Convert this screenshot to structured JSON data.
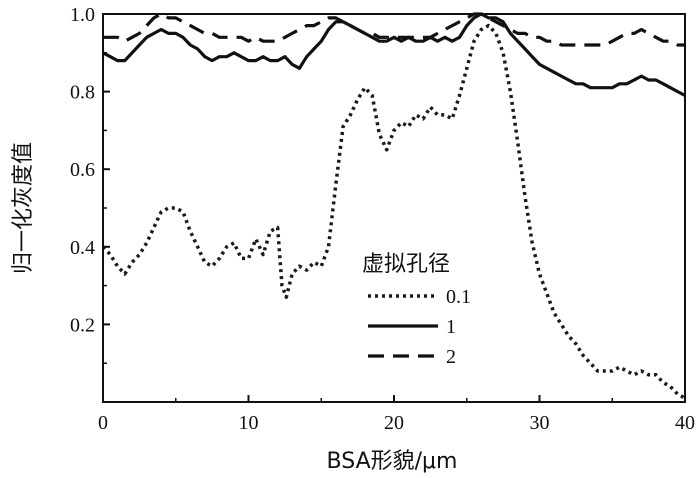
{
  "chart_data": {
    "type": "line",
    "xlabel": "BSA形貌/μm",
    "ylabel": "归一化灰度值",
    "xlim": [
      0,
      40
    ],
    "ylim": [
      0,
      1.0
    ],
    "xticks": [
      "0",
      "10",
      "20",
      "30",
      "40"
    ],
    "yticks": [
      "0.2",
      "0.4",
      "0.6",
      "0.8",
      "1.0"
    ],
    "grid": false,
    "legend": {
      "title": "虚拟孔径",
      "placement": "center-right"
    },
    "series": [
      {
        "name": "0.1",
        "style": "dotted",
        "color": "#1a1a1a",
        "x": [
          0,
          0.5,
          1,
          1.5,
          2,
          2.5,
          3,
          3.5,
          4,
          4.5,
          5,
          5.5,
          6,
          6.5,
          7,
          7.5,
          8,
          8.5,
          9,
          9.5,
          10,
          10.5,
          11,
          11.5,
          12,
          12.3,
          12.6,
          13,
          13.5,
          14,
          14.5,
          15,
          15.5,
          16,
          16.5,
          17,
          17.5,
          18,
          18.5,
          19,
          19.5,
          20,
          20.5,
          21,
          21.5,
          22,
          22.5,
          23,
          23.5,
          24,
          24.5,
          25,
          25.5,
          26,
          26.5,
          27,
          27.5,
          28,
          28.5,
          29,
          29.5,
          30,
          30.5,
          31,
          31.5,
          32,
          32.5,
          33,
          33.5,
          34,
          34.5,
          35,
          35.5,
          36,
          36.5,
          37,
          37.5,
          38,
          38.5,
          39,
          39.5,
          40
        ],
        "values": [
          0.4,
          0.38,
          0.35,
          0.33,
          0.36,
          0.38,
          0.41,
          0.45,
          0.49,
          0.5,
          0.5,
          0.49,
          0.44,
          0.4,
          0.36,
          0.35,
          0.37,
          0.4,
          0.41,
          0.37,
          0.37,
          0.42,
          0.38,
          0.44,
          0.45,
          0.3,
          0.27,
          0.33,
          0.35,
          0.34,
          0.36,
          0.35,
          0.4,
          0.56,
          0.71,
          0.74,
          0.78,
          0.81,
          0.79,
          0.69,
          0.65,
          0.7,
          0.72,
          0.71,
          0.74,
          0.73,
          0.76,
          0.74,
          0.74,
          0.73,
          0.79,
          0.86,
          0.93,
          0.96,
          0.97,
          0.95,
          0.9,
          0.8,
          0.67,
          0.53,
          0.41,
          0.33,
          0.28,
          0.23,
          0.2,
          0.17,
          0.15,
          0.12,
          0.1,
          0.08,
          0.08,
          0.08,
          0.09,
          0.08,
          0.07,
          0.08,
          0.07,
          0.07,
          0.05,
          0.04,
          0.02,
          0.01
        ]
      },
      {
        "name": "1",
        "style": "solid",
        "color": "#111111",
        "x": [
          0,
          0.5,
          1,
          1.5,
          2,
          2.5,
          3,
          3.5,
          4,
          4.5,
          5,
          5.5,
          6,
          6.5,
          7,
          7.5,
          8,
          8.5,
          9,
          9.5,
          10,
          10.5,
          11,
          11.5,
          12,
          12.5,
          13,
          13.5,
          14,
          14.5,
          15,
          15.5,
          16,
          16.5,
          17,
          17.5,
          18,
          18.5,
          19,
          19.5,
          20,
          20.5,
          21,
          21.5,
          22,
          22.5,
          23,
          23.5,
          24,
          24.5,
          25,
          25.5,
          26,
          26.5,
          27,
          27.5,
          28,
          28.5,
          29,
          29.5,
          30,
          30.5,
          31,
          31.5,
          32,
          32.5,
          33,
          33.5,
          34,
          34.5,
          35,
          35.5,
          36,
          36.5,
          37,
          37.5,
          38,
          38.5,
          39,
          39.5,
          40
        ],
        "values": [
          0.9,
          0.89,
          0.88,
          0.88,
          0.9,
          0.92,
          0.94,
          0.95,
          0.96,
          0.95,
          0.95,
          0.94,
          0.92,
          0.91,
          0.89,
          0.88,
          0.89,
          0.89,
          0.9,
          0.89,
          0.88,
          0.88,
          0.89,
          0.88,
          0.88,
          0.89,
          0.87,
          0.86,
          0.89,
          0.91,
          0.93,
          0.96,
          0.98,
          0.98,
          0.97,
          0.96,
          0.95,
          0.94,
          0.93,
          0.93,
          0.94,
          0.93,
          0.94,
          0.93,
          0.93,
          0.94,
          0.93,
          0.94,
          0.93,
          0.94,
          0.97,
          0.99,
          1.0,
          0.99,
          0.99,
          0.98,
          0.95,
          0.93,
          0.91,
          0.89,
          0.87,
          0.86,
          0.85,
          0.84,
          0.83,
          0.82,
          0.82,
          0.81,
          0.81,
          0.81,
          0.81,
          0.82,
          0.82,
          0.83,
          0.84,
          0.83,
          0.83,
          0.82,
          0.81,
          0.8,
          0.79
        ]
      },
      {
        "name": "2",
        "style": "dashed",
        "color": "#111111",
        "x": [
          0,
          0.5,
          1,
          1.5,
          2,
          2.5,
          3,
          3.5,
          4,
          4.5,
          5,
          5.5,
          6,
          6.5,
          7,
          7.5,
          8,
          8.5,
          9,
          9.5,
          10,
          10.5,
          11,
          11.5,
          12,
          12.5,
          13,
          13.5,
          14,
          14.5,
          15,
          15.5,
          16,
          16.5,
          17,
          17.5,
          18,
          18.5,
          19,
          19.5,
          20,
          20.5,
          21,
          21.5,
          22,
          22.5,
          23,
          23.5,
          24,
          24.5,
          25,
          25.5,
          26,
          26.5,
          27,
          27.5,
          28,
          28.5,
          29,
          29.5,
          30,
          30.5,
          31,
          31.5,
          32,
          32.5,
          33,
          33.5,
          34,
          34.5,
          35,
          35.5,
          36,
          36.5,
          37,
          37.5,
          38,
          38.5,
          39,
          39.5,
          40
        ],
        "values": [
          0.94,
          0.94,
          0.94,
          0.93,
          0.94,
          0.95,
          0.97,
          0.99,
          1.0,
          0.99,
          0.99,
          0.98,
          0.97,
          0.96,
          0.95,
          0.95,
          0.94,
          0.94,
          0.94,
          0.94,
          0.93,
          0.94,
          0.93,
          0.93,
          0.93,
          0.94,
          0.95,
          0.96,
          0.97,
          0.97,
          0.98,
          0.99,
          0.99,
          0.98,
          0.97,
          0.96,
          0.95,
          0.95,
          0.94,
          0.94,
          0.94,
          0.94,
          0.94,
          0.94,
          0.94,
          0.94,
          0.95,
          0.96,
          0.97,
          0.98,
          0.99,
          1.0,
          1.0,
          0.99,
          0.98,
          0.97,
          0.96,
          0.95,
          0.95,
          0.94,
          0.94,
          0.93,
          0.93,
          0.92,
          0.92,
          0.92,
          0.92,
          0.92,
          0.92,
          0.92,
          0.93,
          0.94,
          0.95,
          0.95,
          0.96,
          0.95,
          0.94,
          0.93,
          0.93,
          0.92,
          0.92
        ]
      }
    ]
  }
}
